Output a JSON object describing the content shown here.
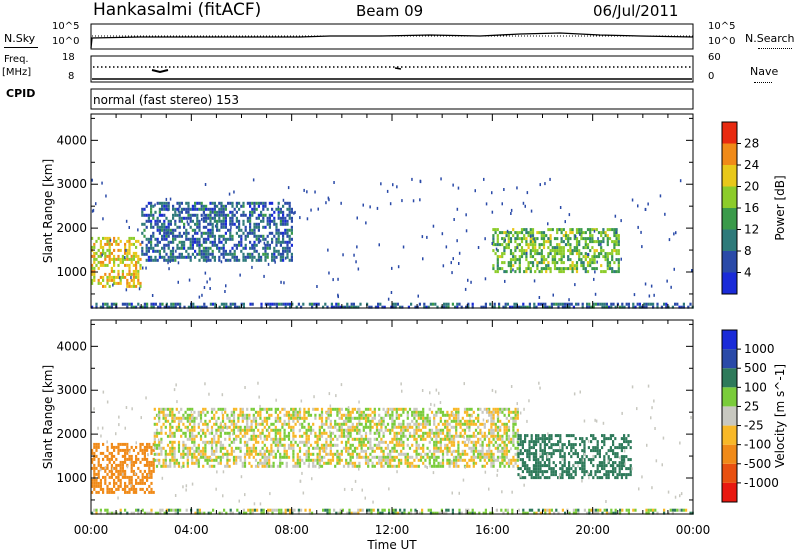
{
  "header": {
    "station": "Hankasalmi (fitACF)",
    "beam": "Beam 09",
    "date": "06/Jul/2011"
  },
  "status_panels": {
    "nsky_label": "N.Sky",
    "nsky_top": "10^5",
    "nsky_bottom": "10^0",
    "nsearch_label": "N.Search",
    "nsearch_top": "10^5",
    "nsearch_bottom": "10^0",
    "freq_label_1": "Freq.",
    "freq_label_2": "[MHz]",
    "freq_top": "18",
    "freq_bottom": "8",
    "nave_label": "Nave",
    "nave_top": "60",
    "nave_bottom": "0",
    "cpid_label": "CPID",
    "cpid_text": "normal (fast stereo) 153"
  },
  "chart_data": [
    {
      "type": "heatmap",
      "title": "",
      "xlabel": "Time UT",
      "ylabel": "Slant Range [km]",
      "x_ticks": [
        "00:00",
        "04:00",
        "08:00",
        "12:00",
        "16:00",
        "20:00",
        "00:00"
      ],
      "y_ticks": [
        "1000",
        "2000",
        "3000",
        "4000"
      ],
      "xlim": [
        0,
        24
      ],
      "ylim": [
        180,
        4600
      ],
      "colorbar": {
        "label": "Power [dB]",
        "ticks": [
          "4",
          "8",
          "12",
          "16",
          "20",
          "24",
          "28"
        ],
        "colors": [
          "#1a2bd8",
          "#2a4aa8",
          "#2e7a7a",
          "#3a9a4a",
          "#8ccc2a",
          "#e8c81a",
          "#f08a18",
          "#e82a10"
        ]
      },
      "structures": [
        {
          "hours": [
            0.0,
            2.0
          ],
          "range_km": [
            700,
            1800
          ],
          "power_db": 22
        },
        {
          "hours": [
            2.0,
            8.0
          ],
          "range_km": [
            1300,
            2600
          ],
          "power_db": 8
        },
        {
          "hours": [
            16.0,
            21.0
          ],
          "range_km": [
            1000,
            2000
          ],
          "power_db": 16
        },
        {
          "hours": [
            0.0,
            24.0
          ],
          "range_km": [
            180,
            300
          ],
          "power_db": 8
        }
      ]
    },
    {
      "type": "heatmap",
      "title": "",
      "xlabel": "Time UT",
      "ylabel": "Slant Range [km]",
      "x_ticks": [
        "00:00",
        "04:00",
        "08:00",
        "12:00",
        "16:00",
        "20:00",
        "00:00"
      ],
      "y_ticks": [
        "1000",
        "2000",
        "3000",
        "4000"
      ],
      "xlim": [
        0,
        24
      ],
      "ylim": [
        180,
        4600
      ],
      "colorbar": {
        "label": "Velocity [m s^-1]",
        "ticks": [
          "1000",
          "500",
          "100",
          "25",
          "-25",
          "-100",
          "-500",
          "-1000"
        ],
        "colors": [
          "#1a2bd8",
          "#2a4aa8",
          "#2e7a5a",
          "#7acc3a",
          "#c8c8c0",
          "#f8b828",
          "#f08a18",
          "#e85010",
          "#e81810"
        ]
      },
      "structures": [
        {
          "hours": [
            0.0,
            2.5
          ],
          "range_km": [
            700,
            1800
          ],
          "velocity_ms": -300
        },
        {
          "hours": [
            2.5,
            17.0
          ],
          "range_km": [
            1300,
            2600
          ],
          "velocity_ms": 0
        },
        {
          "hours": [
            17.0,
            21.5
          ],
          "range_km": [
            1000,
            2000
          ],
          "velocity_ms": 200
        },
        {
          "hours": [
            0.0,
            24.0
          ],
          "range_km": [
            180,
            300
          ],
          "velocity_ms": 50
        }
      ]
    }
  ]
}
